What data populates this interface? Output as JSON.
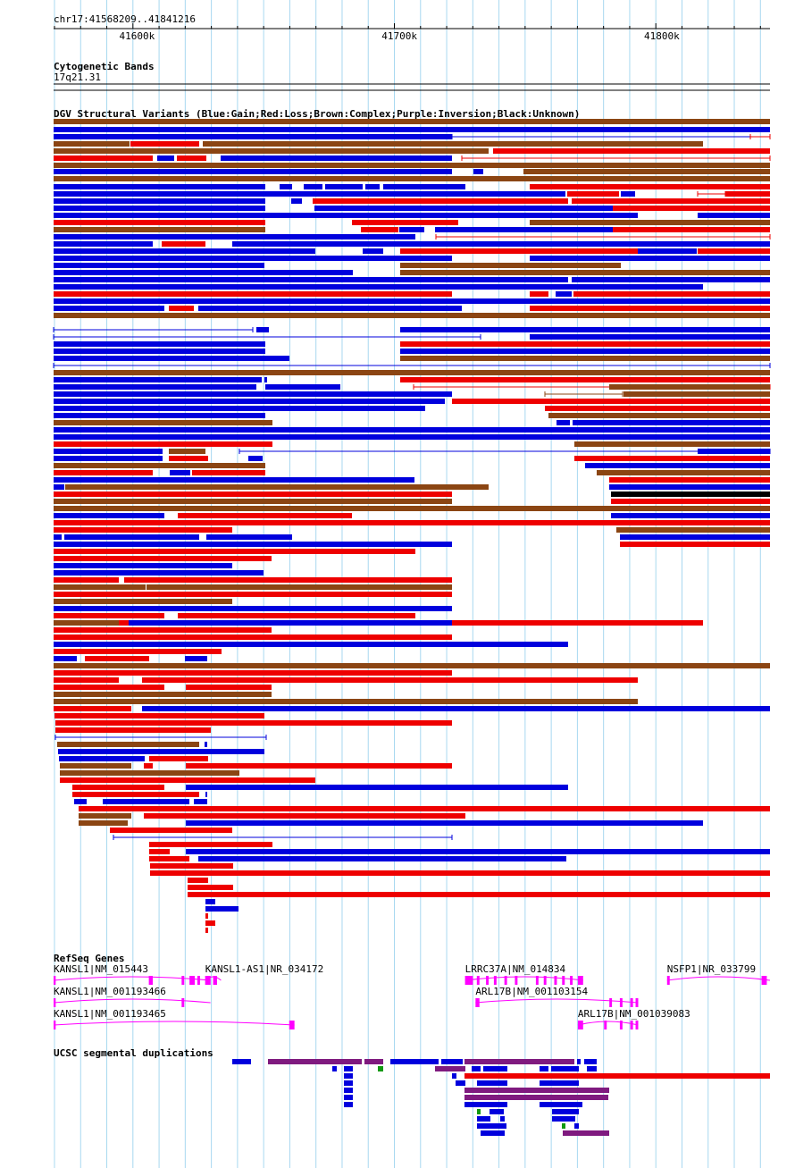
{
  "position": "chr17:41568209..41841216",
  "ruler": {
    "ticks": [
      {
        "pos": 41600000,
        "label": "41600k"
      },
      {
        "pos": 41700000,
        "label": "41700k"
      },
      {
        "pos": 41800000,
        "label": "41800k"
      }
    ]
  },
  "region": {
    "start": 41568209,
    "end": 41841216
  },
  "colors": {
    "gain": "#0000dd",
    "loss": "#ee0000",
    "complex": "#8b4513",
    "inversion": "#800080",
    "unknown": "#000000",
    "gene": "#ff00ff",
    "dup_blue": "#0000dd",
    "dup_purple": "#7f1a7f",
    "dup_green": "#119911",
    "dup_red": "#ee0000",
    "grid": "#a8d8f0"
  },
  "tracks": {
    "cytoband": {
      "title": "Cytogenetic Bands",
      "band_label": "17q21.31"
    },
    "dgv": {
      "title": "DGV Structural Variants (Blue:Gain;Red:Loss;Brown:Complex;Purple:Inversion;Black:Unknown)"
    },
    "refseq": {
      "title": "RefSeq Genes"
    },
    "segdup": {
      "title": "UCSC segmental duplications"
    }
  },
  "genes": [
    {
      "label": "KANSL1|NM_015443",
      "row": 0,
      "start": 41568209,
      "end": 41628000,
      "exons": [
        [
          41568209,
          41569000
        ],
        [
          41604500,
          41606000
        ],
        [
          41617000,
          41618000
        ],
        [
          41620000,
          41622000
        ],
        [
          41623000,
          41624000
        ],
        [
          41626000,
          41628000
        ]
      ]
    },
    {
      "label": "KANSL1-AS1|NR_034172",
      "row": 0,
      "start": 41626000,
      "end": 41632000,
      "exons": [
        [
          41626000,
          41628000
        ],
        [
          41629000,
          41630500
        ]
      ]
    },
    {
      "label": "LRRC37A|NM_014834",
      "row": 0,
      "start": 41725000,
      "end": 41770000,
      "exons": [
        [
          41725000,
          41728000
        ],
        [
          41729500,
          41730500
        ],
        [
          41733000,
          41734000
        ],
        [
          41736000,
          41737000
        ],
        [
          41740000,
          41741000
        ],
        [
          41744000,
          41745000
        ],
        [
          41752000,
          41753000
        ],
        [
          41755000,
          41756000
        ],
        [
          41759000,
          41760000
        ],
        [
          41762000,
          41763000
        ],
        [
          41765000,
          41766000
        ],
        [
          41768000,
          41770000
        ]
      ]
    },
    {
      "label": "NSFP1|NR_033799",
      "row": 0,
      "start": 41802000,
      "end": 41841216,
      "exons": [
        [
          41802000,
          41803000
        ],
        [
          41838000,
          41840000
        ]
      ]
    },
    {
      "label": "KANSL1|NM_001193466",
      "row": 1,
      "start": 41568209,
      "end": 41628000,
      "exons": [
        [
          41568209,
          41569000
        ],
        [
          41617000,
          41618000
        ]
      ]
    },
    {
      "label": "ARL17B|NM_001103154",
      "row": 1,
      "start": 41729000,
      "end": 41791000,
      "exons": [
        [
          41729000,
          41730500
        ],
        [
          41780000,
          41781000
        ],
        [
          41784000,
          41785000
        ],
        [
          41788000,
          41789000
        ],
        [
          41790000,
          41791000
        ]
      ]
    },
    {
      "label": "KANSL1|NM_001193465",
      "row": 2,
      "start": 41568209,
      "end": 41660000,
      "exons": [
        [
          41568209,
          41569000
        ],
        [
          41658000,
          41660000
        ]
      ]
    },
    {
      "label": "ARL17B|NM_001039083",
      "row": 2,
      "start": 41768000,
      "end": 41791000,
      "exons": [
        [
          41768000,
          41770000
        ],
        [
          41778000,
          41779000
        ],
        [
          41784000,
          41785000
        ],
        [
          41788000,
          41789000
        ],
        [
          41790000,
          41791000
        ]
      ]
    }
  ]
}
